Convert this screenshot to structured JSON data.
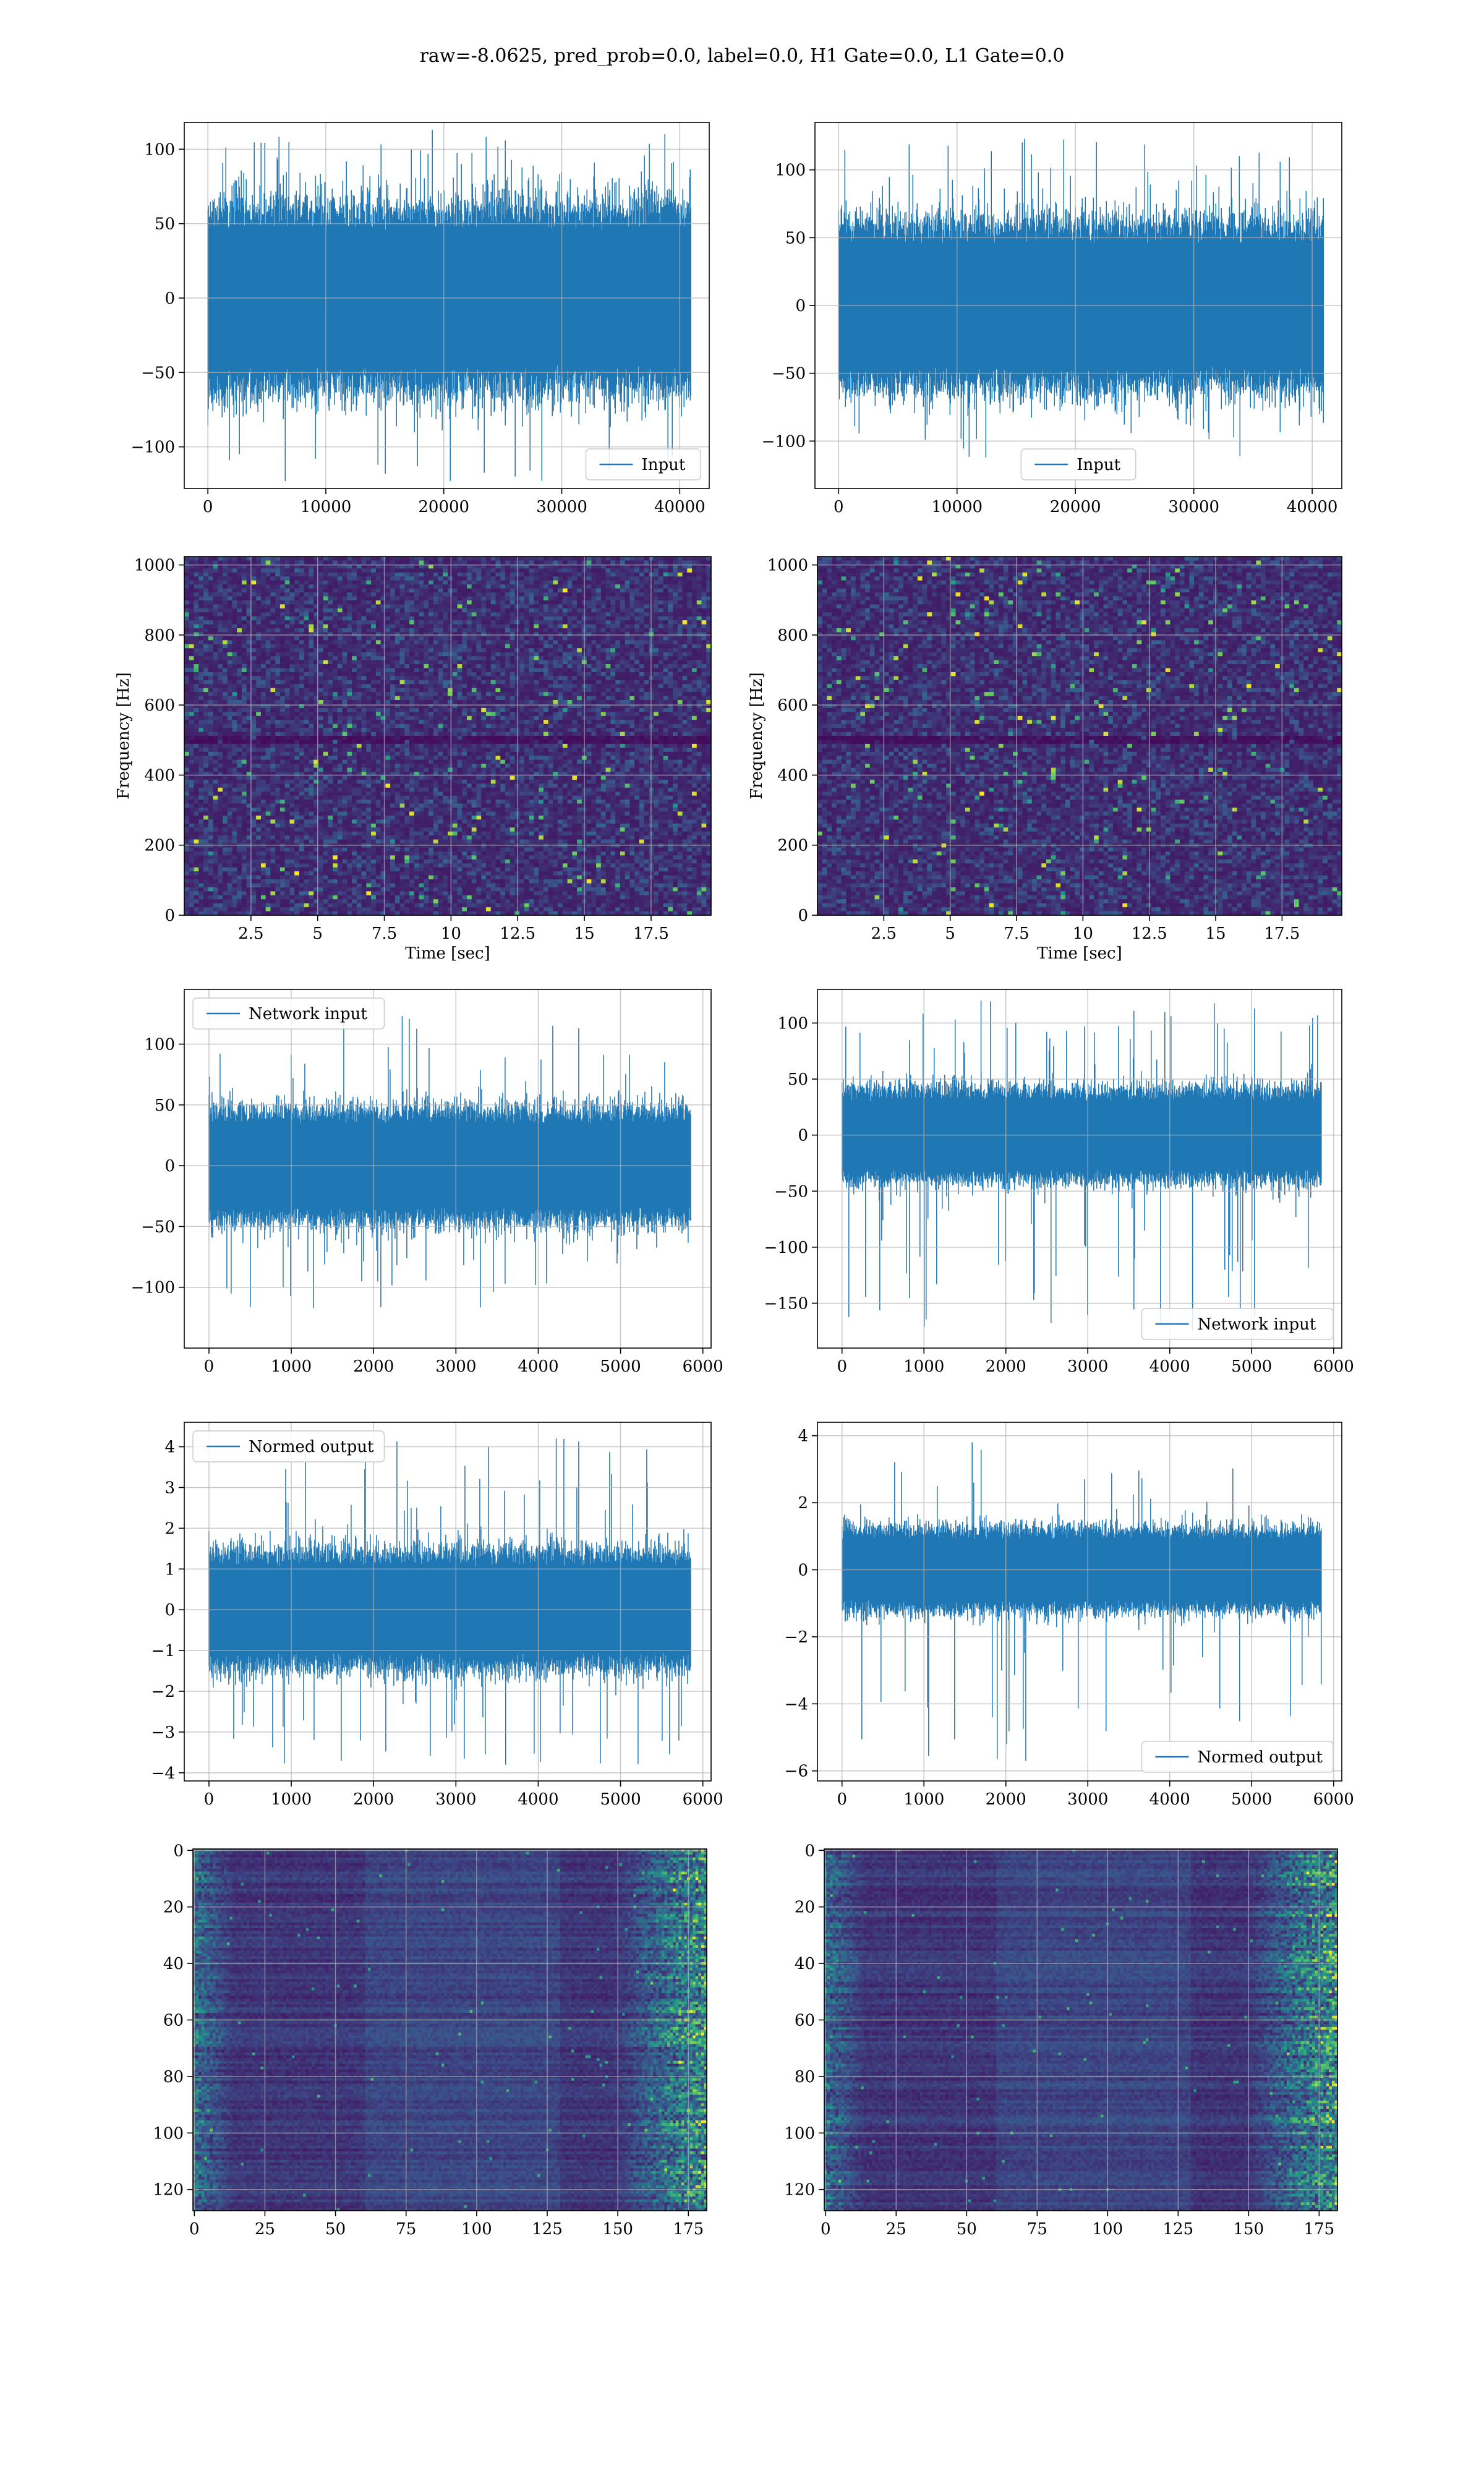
{
  "figure": {
    "title": "raw=-8.0625, pred_prob=0.0, label=0.0, H1 Gate=0.0, L1 Gate=0.0"
  },
  "colors": {
    "line": "#1f77b4",
    "grid": "#b0b0b0",
    "spines": "#000000",
    "viridis_dark": "#440154",
    "viridis_mid": "#31688e",
    "viridis_green": "#35b779",
    "viridis_yellow": "#fde725"
  },
  "chart_data": [
    {
      "id": "input-h1",
      "type": "line",
      "legend": {
        "label": "Input",
        "placement": "lower-right"
      },
      "xlim": [
        -2000,
        42500
      ],
      "ylim": [
        -128,
        118
      ],
      "xticks": [
        0,
        10000,
        20000,
        30000,
        40000
      ],
      "yticks": [
        -100,
        -50,
        0,
        50,
        100
      ],
      "series": [
        {
          "x_range": [
            0,
            40960
          ],
          "envelope_min": -123,
          "envelope_max": 113,
          "typical_halfwidth": 60
        }
      ],
      "grid": true
    },
    {
      "id": "input-l1",
      "type": "line",
      "legend": {
        "label": "Input",
        "placement": "lower-center"
      },
      "xlim": [
        -2000,
        42500
      ],
      "ylim": [
        -135,
        135
      ],
      "xticks": [
        0,
        10000,
        20000,
        30000,
        40000
      ],
      "yticks": [
        -100,
        -50,
        0,
        50,
        100
      ],
      "series": [
        {
          "x_range": [
            0,
            40960
          ],
          "envelope_min": -112,
          "envelope_max": 123,
          "typical_halfwidth": 60
        }
      ],
      "grid": true
    },
    {
      "id": "spectrogram-h1",
      "type": "heatmap",
      "colormap": "viridis",
      "xlabel": "Time [sec]",
      "ylabel": "Frequency [Hz]",
      "xlim": [
        0,
        19.75
      ],
      "ylim": [
        0,
        1024
      ],
      "xticks": [
        2.5,
        5.0,
        7.5,
        10.0,
        12.5,
        15.0,
        17.5
      ],
      "yticks": [
        0,
        200,
        400,
        600,
        800,
        1000
      ],
      "grid": true
    },
    {
      "id": "spectrogram-l1",
      "type": "heatmap",
      "colormap": "viridis",
      "xlabel": "Time [sec]",
      "ylabel": "Frequency [Hz]",
      "xlim": [
        0,
        19.75
      ],
      "ylim": [
        0,
        1024
      ],
      "xticks": [
        2.5,
        5.0,
        7.5,
        10.0,
        12.5,
        15.0,
        17.5
      ],
      "yticks": [
        0,
        200,
        400,
        600,
        800,
        1000
      ],
      "grid": true
    },
    {
      "id": "network-input-h1",
      "type": "line",
      "legend": {
        "label": "Network input",
        "placement": "upper-left"
      },
      "xlim": [
        -300,
        6100
      ],
      "ylim": [
        -150,
        145
      ],
      "xticks": [
        0,
        1000,
        2000,
        3000,
        4000,
        5000,
        6000
      ],
      "yticks": [
        -100,
        -50,
        0,
        50,
        100
      ],
      "series": [
        {
          "x_range": [
            0,
            5850
          ],
          "envelope_min": -117,
          "envelope_max": 123,
          "typical_halfwidth": 45
        }
      ],
      "grid": true
    },
    {
      "id": "network-input-l1",
      "type": "line",
      "legend": {
        "label": "Network input",
        "placement": "lower-right"
      },
      "xlim": [
        -300,
        6100
      ],
      "ylim": [
        -190,
        130
      ],
      "xticks": [
        0,
        1000,
        2000,
        3000,
        4000,
        5000,
        6000
      ],
      "yticks": [
        -150,
        -100,
        -50,
        0,
        50,
        100
      ],
      "series": [
        {
          "x_range": [
            0,
            5850
          ],
          "envelope_min": -175,
          "envelope_max": 120,
          "typical_halfwidth": 40
        }
      ],
      "grid": true
    },
    {
      "id": "normed-output-h1",
      "type": "line",
      "legend": {
        "label": "Normed output",
        "placement": "upper-left"
      },
      "xlim": [
        -300,
        6100
      ],
      "ylim": [
        -4.2,
        4.6
      ],
      "xticks": [
        0,
        1000,
        2000,
        3000,
        4000,
        5000,
        6000
      ],
      "yticks": [
        -4,
        -3,
        -2,
        -1,
        0,
        1,
        2,
        3,
        4
      ],
      "series": [
        {
          "x_range": [
            0,
            5850
          ],
          "envelope_min": -3.8,
          "envelope_max": 4.2,
          "typical_halfwidth": 1.4
        }
      ],
      "grid": true
    },
    {
      "id": "normed-output-l1",
      "type": "line",
      "legend": {
        "label": "Normed output",
        "placement": "lower-right"
      },
      "xlim": [
        -300,
        6100
      ],
      "ylim": [
        -6.3,
        4.4
      ],
      "xticks": [
        0,
        1000,
        2000,
        3000,
        4000,
        5000,
        6000
      ],
      "yticks": [
        -6,
        -4,
        -2,
        0,
        2,
        4
      ],
      "series": [
        {
          "x_range": [
            0,
            5850
          ],
          "envelope_min": -5.7,
          "envelope_max": 3.8,
          "typical_halfwidth": 1.2
        }
      ],
      "grid": true
    },
    {
      "id": "feature-map-h1",
      "type": "heatmap",
      "colormap": "viridis",
      "xlim": [
        -0.5,
        181.5
      ],
      "ylim": [
        127.5,
        -0.5
      ],
      "xticks": [
        0,
        25,
        50,
        75,
        100,
        125,
        150,
        175
      ],
      "yticks": [
        0,
        20,
        40,
        60,
        80,
        100,
        120
      ],
      "grid": true
    },
    {
      "id": "feature-map-l1",
      "type": "heatmap",
      "colormap": "viridis",
      "xlim": [
        -0.5,
        181.5
      ],
      "ylim": [
        127.5,
        -0.5
      ],
      "xticks": [
        0,
        25,
        50,
        75,
        100,
        125,
        150,
        175
      ],
      "yticks": [
        0,
        20,
        40,
        60,
        80,
        100,
        120
      ],
      "grid": true
    }
  ]
}
